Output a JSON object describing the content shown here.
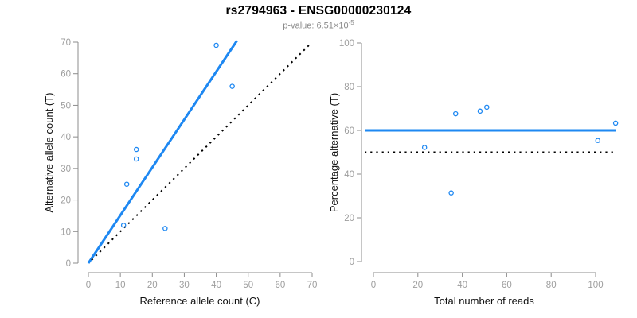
{
  "header": {
    "title": "rs2794963 - ENSG00000230124",
    "subtitle_prefix": "p-value: 6.51×10",
    "subtitle_exponent": "-5"
  },
  "colors": {
    "accent_blue": "#1e88f2",
    "identity_black": "#000000",
    "axis_gray": "#8c8c8c",
    "tick_label_gray": "#9e9e9e"
  },
  "chart_data": [
    {
      "type": "scatter",
      "xlabel": "Reference allele count (C)",
      "ylabel": "Alternative allele count (T)",
      "xlim": [
        0,
        70
      ],
      "ylim": [
        0,
        70
      ],
      "xticks": [
        0,
        10,
        20,
        30,
        40,
        50,
        60,
        70
      ],
      "yticks": [
        0,
        10,
        20,
        30,
        40,
        50,
        60,
        70
      ],
      "grid": false,
      "legend": "none",
      "marker": "open-circle",
      "point_color": "#1e88f2",
      "points": [
        [
          11,
          12
        ],
        [
          12,
          25
        ],
        [
          15,
          33
        ],
        [
          15,
          36
        ],
        [
          24,
          11
        ],
        [
          40,
          69
        ],
        [
          45,
          56
        ]
      ],
      "lines": [
        {
          "name": "fitted-ratio-line",
          "type": "segment",
          "from": [
            0,
            0
          ],
          "to": [
            46.5,
            70.5
          ],
          "color": "#1e88f2",
          "style": "solid",
          "width": 3
        },
        {
          "name": "identity-line",
          "type": "segment",
          "from": [
            1,
            1
          ],
          "to": [
            69,
            69
          ],
          "color": "#000000",
          "style": "dotted",
          "width": 2
        }
      ]
    },
    {
      "type": "scatter",
      "xlabel": "Total number of reads",
      "ylabel": "Percentage alternative (T)",
      "xlim": [
        0,
        100
      ],
      "ylim": [
        0,
        100
      ],
      "xticks": [
        0,
        20,
        40,
        60,
        80,
        100
      ],
      "yticks": [
        0,
        20,
        40,
        60,
        80,
        100
      ],
      "grid": false,
      "legend": "none",
      "marker": "open-circle",
      "point_color": "#1e88f2",
      "points": [
        [
          23,
          52.2
        ],
        [
          35,
          31.4
        ],
        [
          37,
          67.6
        ],
        [
          48,
          68.8
        ],
        [
          51,
          70.6
        ],
        [
          101,
          55.4
        ],
        [
          109,
          63.3
        ]
      ],
      "lines": [
        {
          "name": "mean-percentage-line",
          "type": "hline",
          "y": 60,
          "color": "#1e88f2",
          "style": "solid",
          "width": 3
        },
        {
          "name": "fifty-percent-line",
          "type": "hline",
          "y": 50,
          "color": "#000000",
          "style": "dotted",
          "width": 2
        }
      ]
    }
  ]
}
